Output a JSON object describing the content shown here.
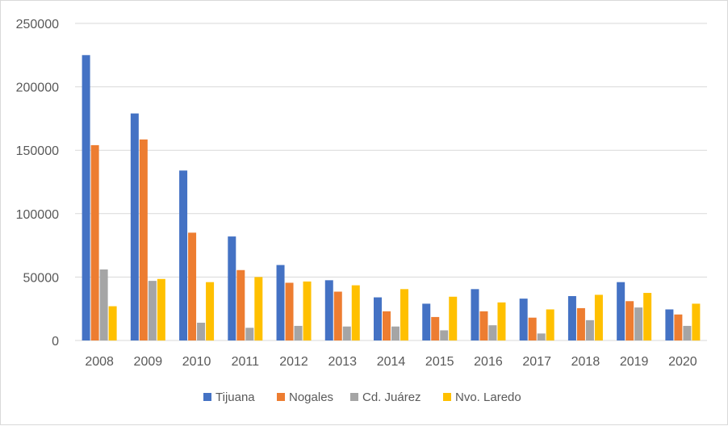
{
  "chart_data": {
    "type": "bar",
    "title": "",
    "xlabel": "",
    "ylabel": "",
    "categories": [
      "2008",
      "2009",
      "2010",
      "2011",
      "2012",
      "2013",
      "2014",
      "2015",
      "2016",
      "2017",
      "2018",
      "2019",
      "2020"
    ],
    "series": [
      {
        "name": "Tijuana",
        "color": "#4472C4",
        "values": [
          225000,
          179000,
          134000,
          82000,
          59500,
          47500,
          34000,
          29000,
          40500,
          33000,
          35000,
          46000,
          24500
        ]
      },
      {
        "name": "Nogales",
        "color": "#ED7D31",
        "values": [
          154000,
          158500,
          85000,
          55500,
          45500,
          38500,
          23000,
          18500,
          23000,
          18000,
          25500,
          31000,
          20500
        ]
      },
      {
        "name": "Cd. Juárez",
        "color": "#A5A5A5",
        "values": [
          56000,
          47000,
          14000,
          10000,
          11500,
          11000,
          11000,
          8000,
          12000,
          5500,
          16000,
          26000,
          11500
        ]
      },
      {
        "name": "Nvo. Laredo",
        "color": "#FFC000",
        "values": [
          27000,
          48500,
          46000,
          50000,
          46500,
          43500,
          40500,
          34500,
          30000,
          24500,
          36000,
          37500,
          29000
        ]
      }
    ],
    "ylim": [
      0,
      250000
    ],
    "yticks": [
      "0",
      "50000",
      "100000",
      "150000",
      "200000",
      "250000"
    ],
    "grid": true,
    "legend_position": "bottom"
  }
}
